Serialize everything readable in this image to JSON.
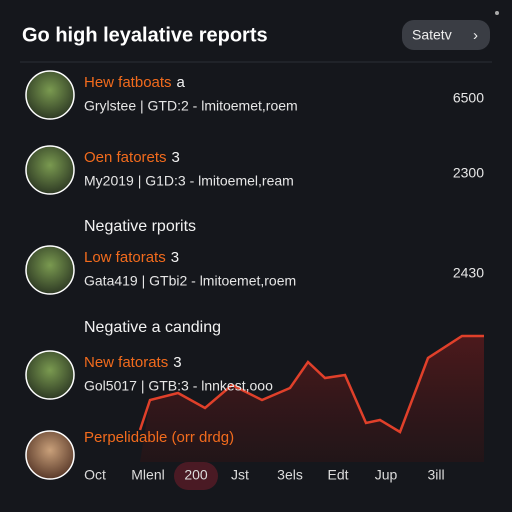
{
  "header": {
    "title": "Go high leyalative reports",
    "button": "Satetv"
  },
  "rows": [
    {
      "name": "Hew fatboats",
      "badge": "a",
      "meta": "Grylstee  |  GTD:2 - lmitoemet,roem",
      "value": "6500"
    },
    {
      "name": "Oen fatorets",
      "badge": "3",
      "meta": "My2019  |  G1D:3 - lmitoemel,ream",
      "value": "2300"
    },
    {
      "section": "Negative rporits"
    },
    {
      "name": "Low fatorats",
      "badge": "3",
      "meta": "Gata419  |  GTbi2 - lmitoemet,roem",
      "value": "2430"
    },
    {
      "section": "Negative a canding"
    },
    {
      "name": "New fatorats",
      "badge": "3",
      "meta": "Gol5017  |  GTB:3 - lnnkest,ooo"
    },
    {
      "name": "Perpelidable (orr drdg)"
    }
  ],
  "timeline": {
    "labels": [
      "Oct",
      "Mlenl",
      "200",
      "Jst",
      "3els",
      "Edt",
      "Jup",
      "3ill"
    ],
    "selected": 2
  }
}
